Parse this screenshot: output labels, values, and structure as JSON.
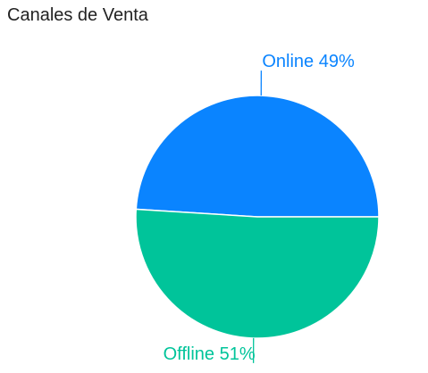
{
  "chart_data": {
    "type": "pie",
    "title": "Canales de Venta",
    "slices": [
      {
        "label": "Online",
        "value": 49,
        "percent_text": "49%",
        "color": "#0A84FF"
      },
      {
        "label": "Offline",
        "value": 51,
        "percent_text": "51%",
        "color": "#00C49A"
      }
    ],
    "start_angle": "right",
    "direction": "counter-clockwise",
    "legend": "none"
  }
}
